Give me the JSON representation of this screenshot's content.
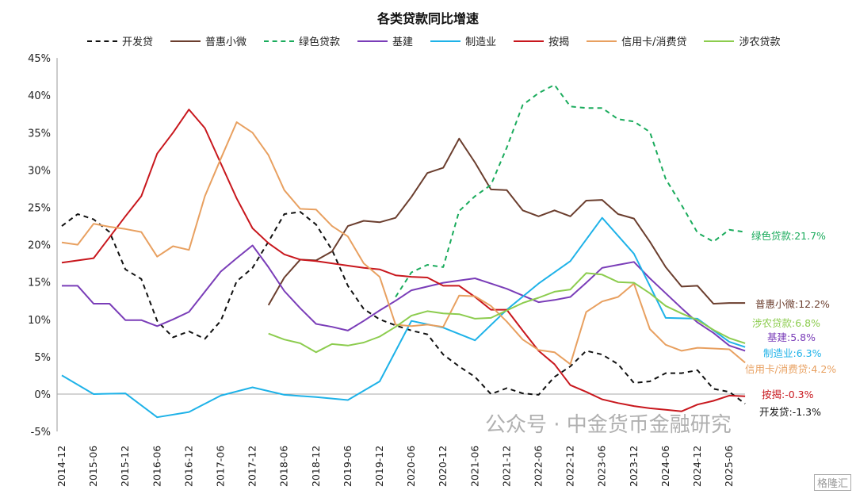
{
  "chart_data": {
    "type": "line",
    "title": "各类贷款同比增速",
    "xlabel": "",
    "ylabel": "",
    "ylim": [
      -5,
      45
    ],
    "yticks": [
      "-5%",
      "0%",
      "5%",
      "10%",
      "15%",
      "20%",
      "25%",
      "30%",
      "35%",
      "40%",
      "45%"
    ],
    "ytick_values": [
      -5,
      0,
      5,
      10,
      15,
      20,
      25,
      30,
      35,
      40,
      45
    ],
    "x": [
      "2014-12",
      "2015-03",
      "2015-06",
      "2015-09",
      "2015-12",
      "2016-03",
      "2016-06",
      "2016-09",
      "2016-12",
      "2017-03",
      "2017-06",
      "2017-09",
      "2017-12",
      "2018-03",
      "2018-06",
      "2018-09",
      "2018-12",
      "2019-03",
      "2019-06",
      "2019-09",
      "2019-12",
      "2020-03",
      "2020-06",
      "2020-09",
      "2020-12",
      "2021-03",
      "2021-06",
      "2021-09",
      "2021-12",
      "2022-03",
      "2022-06",
      "2022-09",
      "2022-12",
      "2023-03",
      "2023-06",
      "2023-09",
      "2023-12",
      "2024-03",
      "2024-06",
      "2024-09",
      "2024-12",
      "2025-03",
      "2025-06",
      "2025-09"
    ],
    "xticks": [
      "2014-12",
      "2015-06",
      "2015-12",
      "2016-06",
      "2016-12",
      "2017-06",
      "2017-12",
      "2018-06",
      "2018-12",
      "2019-06",
      "2019-12",
      "2020-06",
      "2020-12",
      "2021-06",
      "2021-12",
      "2022-06",
      "2022-12",
      "2023-06",
      "2023-12",
      "2024-06",
      "2024-12",
      "2025-06"
    ],
    "grid": false,
    "legend_position": "top",
    "series": [
      {
        "key": "dev",
        "name": "开发贷",
        "color": "#111111",
        "dashed": true,
        "end_label": "开发贷:-1.3%",
        "values": [
          22.5,
          24.1,
          23.4,
          21.7,
          16.7,
          15.4,
          9.8,
          7.6,
          8.4,
          7.4,
          9.8,
          15.1,
          16.9,
          20.4,
          24.1,
          24.4,
          22.7,
          19.3,
          14.5,
          11.4,
          10,
          9.2,
          8.5,
          8.0,
          5.3,
          3.7,
          2.3,
          0,
          0.8,
          0.1,
          -0.1,
          2.3,
          3.7,
          5.8,
          5.3,
          4,
          1.5,
          1.7,
          2.8,
          2.8,
          3.2,
          0.7,
          0.3,
          -1.3
        ]
      },
      {
        "key": "micro",
        "name": "普惠小微",
        "color": "#6b3e2e",
        "dashed": false,
        "end_label": "普惠小微:12.2%",
        "values": [
          null,
          null,
          null,
          null,
          null,
          null,
          null,
          null,
          null,
          null,
          null,
          null,
          null,
          11.9,
          15.6,
          18,
          17.9,
          19.1,
          22.5,
          23.2,
          23,
          23.6,
          26.4,
          29.6,
          30.3,
          34.2,
          31,
          27.4,
          27.3,
          24.6,
          23.8,
          24.6,
          23.8,
          25.9,
          26,
          24.1,
          23.5,
          20.4,
          17,
          14.4,
          14.5,
          12.1,
          12.2,
          12.2
        ]
      },
      {
        "key": "green",
        "name": "绿色贷款",
        "color": "#1aab5c",
        "dashed": true,
        "end_label": "绿色贷款:21.7%",
        "values": [
          null,
          null,
          null,
          null,
          null,
          null,
          null,
          null,
          null,
          null,
          null,
          null,
          null,
          null,
          null,
          null,
          null,
          null,
          null,
          null,
          null,
          13,
          16.3,
          17.3,
          17.0,
          24.5,
          26.5,
          28.0,
          33,
          38.7,
          40.3,
          41.4,
          38.5,
          38.3,
          38.3,
          36.8,
          36.5,
          35.1,
          28.8,
          25.3,
          21.6,
          20.4,
          22.0,
          21.7
        ]
      },
      {
        "key": "infra",
        "name": "基建",
        "color": "#7a3db8",
        "dashed": false,
        "end_label": "基建:5.8%",
        "values": [
          14.5,
          14.5,
          12.1,
          12.1,
          9.9,
          9.9,
          9.1,
          10,
          11.0,
          13.7,
          16.4,
          18.2,
          19.9,
          17,
          13.8,
          11.5,
          9.4,
          9.0,
          8.5,
          9.8,
          11.2,
          12.5,
          13.9,
          14.4,
          14.9,
          15.2,
          15.5,
          14.8,
          14.1,
          13.2,
          12.3,
          12.6,
          13.0,
          14.9,
          16.9,
          17.3,
          17.7,
          15.5,
          13.5,
          11.5,
          9.6,
          8.2,
          6.5,
          5.8
        ]
      },
      {
        "key": "mfg",
        "name": "制造业",
        "color": "#1eb2e8",
        "dashed": false,
        "end_label": "制造业:6.3%",
        "values": [
          2.5,
          null,
          0.0,
          null,
          0.1,
          null,
          -3.1,
          null,
          -2.4,
          null,
          -0.2,
          null,
          0.9,
          null,
          -0.1,
          null,
          -0.4,
          null,
          -0.8,
          null,
          1.7,
          null,
          9.8,
          null,
          8.9,
          null,
          7.2,
          null,
          11.3,
          null,
          14.8,
          null,
          17.8,
          null,
          23.6,
          null,
          18.8,
          null,
          10.2,
          null,
          10.1,
          null,
          7.0,
          6.3
        ]
      },
      {
        "key": "mortgage",
        "name": "按揭",
        "color": "#c8171d",
        "dashed": false,
        "end_label": "按揭:-0.3%",
        "values": [
          17.6,
          null,
          18.2,
          21,
          23.8,
          26.5,
          32.2,
          35,
          38.1,
          35.6,
          30.9,
          26.2,
          22.2,
          20.2,
          18.7,
          18.0,
          17.8,
          17.5,
          17.2,
          16.9,
          16.7,
          15.9,
          15.7,
          15.6,
          14.5,
          14.5,
          13.0,
          11.3,
          11.3,
          8.5,
          5.8,
          4.0,
          1.2,
          0.3,
          -0.7,
          -1.2,
          -1.6,
          -1.9,
          -2.1,
          -2.3,
          -1.4,
          -0.9,
          -0.2,
          -0.3
        ]
      },
      {
        "key": "consumer",
        "name": "信用卡/消费贷",
        "color": "#e8a060",
        "dashed": false,
        "end_label": "信用卡/消费贷:4.2%",
        "values": [
          20.3,
          20.0,
          22.8,
          22.4,
          22.1,
          21.7,
          18.4,
          19.8,
          19.3,
          26.5,
          31.5,
          36.4,
          35.0,
          32.0,
          27.3,
          24.8,
          24.7,
          22.5,
          21.1,
          17.5,
          15.7,
          9.3,
          9.1,
          9.3,
          9.0,
          13.2,
          13.1,
          11.8,
          9.7,
          7.3,
          5.9,
          5.6,
          4.0,
          11.0,
          12.4,
          13.0,
          14.8,
          8.7,
          6.6,
          5.8,
          6.2,
          6.1,
          6.0,
          4.2
        ]
      },
      {
        "key": "agri",
        "name": "涉农贷款",
        "color": "#8ccc4e",
        "dashed": false,
        "end_label": "涉农贷款:6.8%",
        "values": [
          null,
          null,
          null,
          null,
          null,
          null,
          null,
          null,
          null,
          null,
          null,
          null,
          null,
          8.1,
          7.3,
          6.8,
          5.6,
          6.7,
          6.5,
          6.9,
          7.7,
          9.0,
          10.5,
          11.1,
          10.8,
          10.7,
          10.1,
          10.2,
          11.2,
          12.2,
          12.9,
          13.7,
          14.0,
          16.2,
          16.0,
          15.0,
          14.9,
          13.5,
          11.8,
          10.8,
          9.9,
          8.6,
          7.5,
          6.8
        ]
      }
    ]
  },
  "watermark": "公众号 · 中金货币金融研究",
  "logo": "格隆汇"
}
